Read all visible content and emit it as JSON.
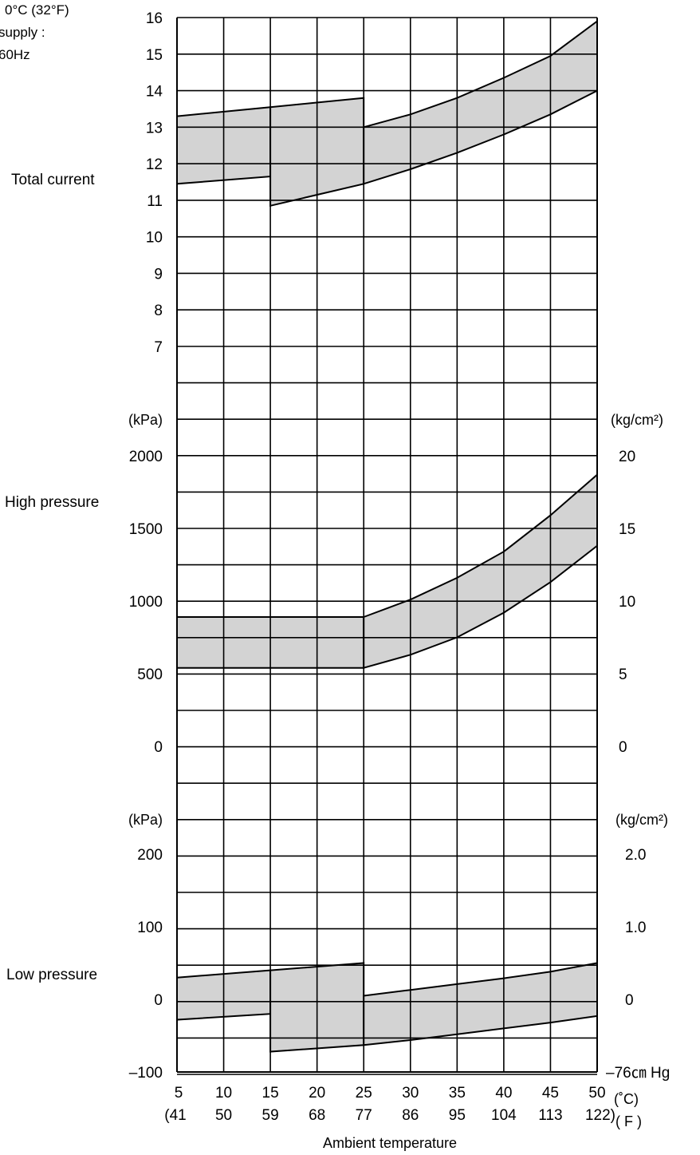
{
  "header_fragments": [
    "0°C (32°F)",
    "supply :",
    "60Hz"
  ],
  "x_axis": {
    "label": "Ambient temperature",
    "celsius": [
      "5",
      "10",
      "15",
      "20",
      "25",
      "30",
      "35",
      "40",
      "45",
      "50"
    ],
    "fahrenheit": [
      "(41",
      "50",
      "59",
      "68",
      "77",
      "86",
      "95",
      "104",
      "113",
      "122)"
    ],
    "celsius_unit": "(˚C)",
    "fahrenheit_unit": "( F )"
  },
  "chart_data": [
    {
      "type": "area",
      "title": "",
      "ylabel": "Total current",
      "xlim": [
        5,
        50
      ],
      "ylim": [
        7,
        16
      ],
      "grid": true,
      "y_ticks": [
        "16",
        "15",
        "14",
        "13",
        "12",
        "11",
        "10",
        "9",
        "8",
        "7"
      ],
      "series": [
        {
          "segment": [
            5,
            15
          ],
          "x": [
            5,
            15
          ],
          "upper": [
            13.3,
            13.55
          ],
          "lower": [
            11.45,
            11.65
          ]
        },
        {
          "segment": [
            15,
            25
          ],
          "x": [
            15,
            25
          ],
          "upper": [
            13.55,
            13.8
          ],
          "lower": [
            10.85,
            11.45
          ]
        },
        {
          "segment": [
            25,
            50
          ],
          "x": [
            25,
            30,
            35,
            40,
            45,
            50
          ],
          "upper": [
            13.0,
            13.35,
            13.8,
            14.35,
            14.95,
            15.9
          ],
          "lower": [
            11.45,
            11.85,
            12.3,
            12.8,
            13.35,
            14.0
          ]
        }
      ]
    },
    {
      "type": "area",
      "title": "",
      "ylabel": "High pressure",
      "unit_left": "(kPa)",
      "unit_right": "(kg/cm²)",
      "xlim": [
        5,
        50
      ],
      "ylim": [
        0,
        2000
      ],
      "grid": true,
      "y_ticks_left": [
        "2000",
        "1500",
        "1000",
        "500",
        "0"
      ],
      "y_ticks_right": [
        "20",
        "15",
        "10",
        "5",
        "0"
      ],
      "series": [
        {
          "segment": [
            5,
            25
          ],
          "x": [
            5,
            25
          ],
          "upper": [
            890,
            890
          ],
          "lower": [
            540,
            540
          ]
        },
        {
          "segment": [
            25,
            50
          ],
          "x": [
            25,
            30,
            35,
            40,
            45,
            50
          ],
          "upper": [
            890,
            1010,
            1160,
            1340,
            1590,
            1870
          ],
          "lower": [
            540,
            630,
            750,
            920,
            1130,
            1380
          ]
        }
      ]
    },
    {
      "type": "area",
      "title": "",
      "ylabel": "Low pressure",
      "unit_left": "(kPa)",
      "unit_right": "(kg/cm²)",
      "xlim": [
        5,
        50
      ],
      "ylim": [
        -100,
        200
      ],
      "grid": true,
      "y_ticks_left": [
        "200",
        "100",
        "0",
        "–100"
      ],
      "y_ticks_right": [
        "2.0",
        "1.0",
        "0",
        "–76㎝ Hg"
      ],
      "series": [
        {
          "segment": [
            5,
            15
          ],
          "x": [
            5,
            15
          ],
          "upper": [
            30,
            40
          ],
          "lower": [
            -28,
            -20
          ]
        },
        {
          "segment": [
            15,
            25
          ],
          "x": [
            15,
            25
          ],
          "upper": [
            40,
            50
          ],
          "lower": [
            -72,
            -63
          ]
        },
        {
          "segment": [
            25,
            50
          ],
          "x": [
            25,
            30,
            35,
            40,
            45,
            50
          ],
          "upper": [
            5,
            13,
            21,
            29,
            38,
            50
          ],
          "lower": [
            -63,
            -56,
            -48,
            -40,
            -32,
            -23
          ]
        }
      ]
    }
  ]
}
